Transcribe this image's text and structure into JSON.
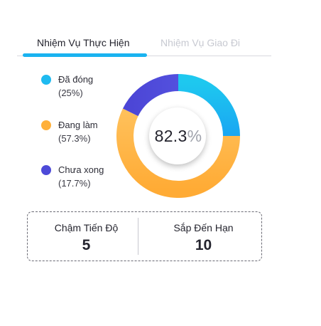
{
  "tabs": [
    {
      "label": "Nhiệm Vụ Thực Hiện",
      "active": true
    },
    {
      "label": "Nhiệm Vụ Giao Đi",
      "active": false
    }
  ],
  "legend": [
    {
      "label": "Đã đóng",
      "percent_text": "(25%)",
      "value": 25,
      "color": "#1fbaf0"
    },
    {
      "label": "Đang làm",
      "percent_text": "(57.3%)",
      "value": 57.3,
      "color": "#ffb03a"
    },
    {
      "label": "Chưa xong",
      "percent_text": "(17.7%)",
      "value": 17.7,
      "color": "#4d4ad8"
    }
  ],
  "donut": {
    "center_value": "82.3",
    "center_unit": "%"
  },
  "stats": {
    "behind_schedule": {
      "label": "Chậm Tiến Độ",
      "value": "5"
    },
    "due_soon": {
      "label": "Sắp Đến Hạn",
      "value": "10"
    }
  },
  "colors": {
    "accent": "#1ab3f0",
    "done": "#1fbaf0",
    "in_progress": "#ffb03a",
    "not_done": "#4d4ad8"
  }
}
